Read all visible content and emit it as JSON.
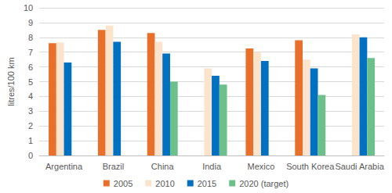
{
  "chart_data": {
    "type": "bar",
    "y_label": "litres/100 km",
    "categories": [
      "Argentina",
      "Brazil",
      "China",
      "India",
      "Mexico",
      "South Korea",
      "Saudi Arabia"
    ],
    "series": [
      {
        "name": "2005",
        "color": "#e8702a",
        "values": [
          7.6,
          8.5,
          8.3,
          null,
          7.25,
          7.8,
          null
        ]
      },
      {
        "name": "2010",
        "color": "#fce4cc",
        "values": [
          7.65,
          8.8,
          7.7,
          5.9,
          7.0,
          6.5,
          8.2
        ]
      },
      {
        "name": "2015",
        "color": "#0070c0",
        "values": [
          6.3,
          7.7,
          6.9,
          5.4,
          6.4,
          5.9,
          8.0
        ]
      },
      {
        "name": "2020 (target)",
        "color": "#6cc18a",
        "values": [
          null,
          null,
          5.0,
          4.8,
          null,
          4.1,
          6.6
        ]
      }
    ],
    "ylim": [
      0,
      10
    ],
    "yticks": [
      0,
      1,
      2,
      3,
      4,
      5,
      6,
      7,
      8,
      9,
      10
    ],
    "grid": true,
    "legend": "bottom"
  }
}
